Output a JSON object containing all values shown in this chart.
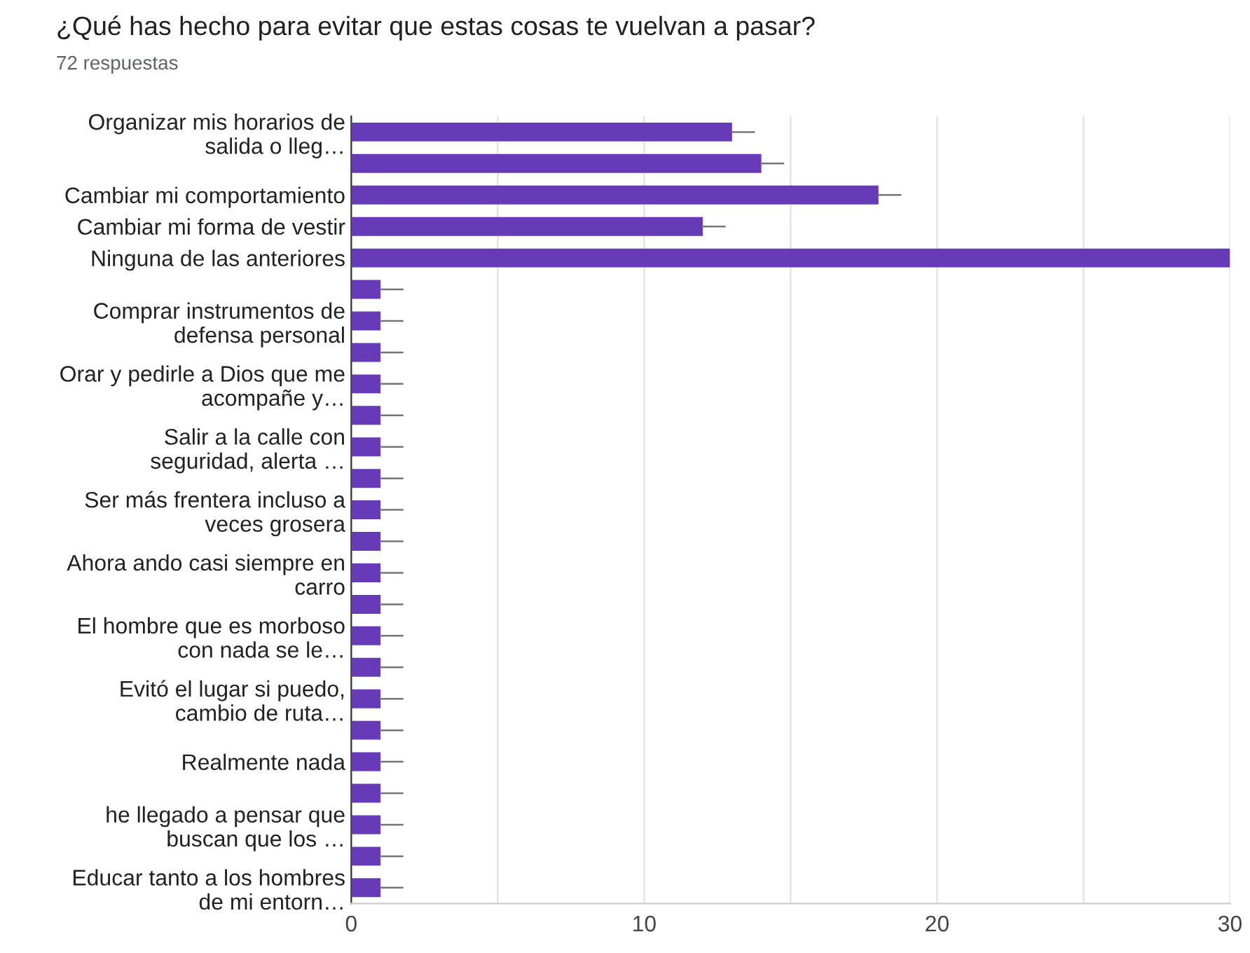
{
  "chart_data": {
    "type": "bar",
    "orientation": "horizontal",
    "title": "¿Qué has hecho para evitar que estas cosas te vuelvan a pasar?",
    "subtitle": "72 respuestas",
    "categories": [
      "Organizar mis horarios de\nsalida o lleg…",
      null,
      "Cambiar mi comportamiento",
      "Cambiar mi forma de vestir",
      "Ninguna de las anteriores",
      null,
      "Comprar instrumentos de\ndefensa personal",
      null,
      "Orar y pedirle a Dios que me\nacompañe y…",
      null,
      "Salir a la calle con\nseguridad, alerta …",
      null,
      "Ser más frentera incluso a\nveces grosera",
      null,
      "Ahora ando casi siempre en\ncarro",
      null,
      "El hombre que es morboso\ncon nada se le…",
      null,
      "Evitó el lugar si puedo,\ncambio de ruta…",
      null,
      "Realmente nada",
      null,
      "he llegado a pensar que\nbuscan que los …",
      null,
      "Educar tanto a los hombres\nde mi entorn…"
    ],
    "values": [
      13,
      14,
      18,
      12,
      30,
      1,
      1,
      1,
      1,
      1,
      1,
      1,
      1,
      1,
      1,
      1,
      1,
      1,
      1,
      1,
      1,
      1,
      1,
      1,
      1
    ],
    "errors": [
      [
        13,
        13.75
      ],
      [
        14,
        14.75
      ],
      [
        18,
        18.75
      ],
      [
        12,
        12.75
      ],
      null,
      [
        1,
        1.75
      ],
      [
        1,
        1.75
      ],
      [
        1,
        1.75
      ],
      [
        1,
        1.75
      ],
      [
        1,
        1.75
      ],
      [
        1,
        1.75
      ],
      [
        1,
        1.75
      ],
      [
        1,
        1.75
      ],
      [
        1,
        1.75
      ],
      [
        1,
        1.75
      ],
      [
        1,
        1.75
      ],
      [
        1,
        1.75
      ],
      [
        1,
        1.75
      ],
      [
        1,
        1.75
      ],
      [
        1,
        1.75
      ],
      [
        1,
        1.75
      ],
      [
        1,
        1.75
      ],
      [
        1,
        1.75
      ],
      [
        1,
        1.75
      ],
      [
        1,
        1.75
      ]
    ],
    "color": "#673ab7",
    "xlim": [
      0,
      30
    ],
    "xticks": [
      0,
      {
        "value": 5,
        "label": null
      },
      10,
      {
        "value": 15,
        "label": null
      },
      20,
      {
        "value": 25,
        "label": null
      },
      30
    ],
    "grid": "x"
  }
}
